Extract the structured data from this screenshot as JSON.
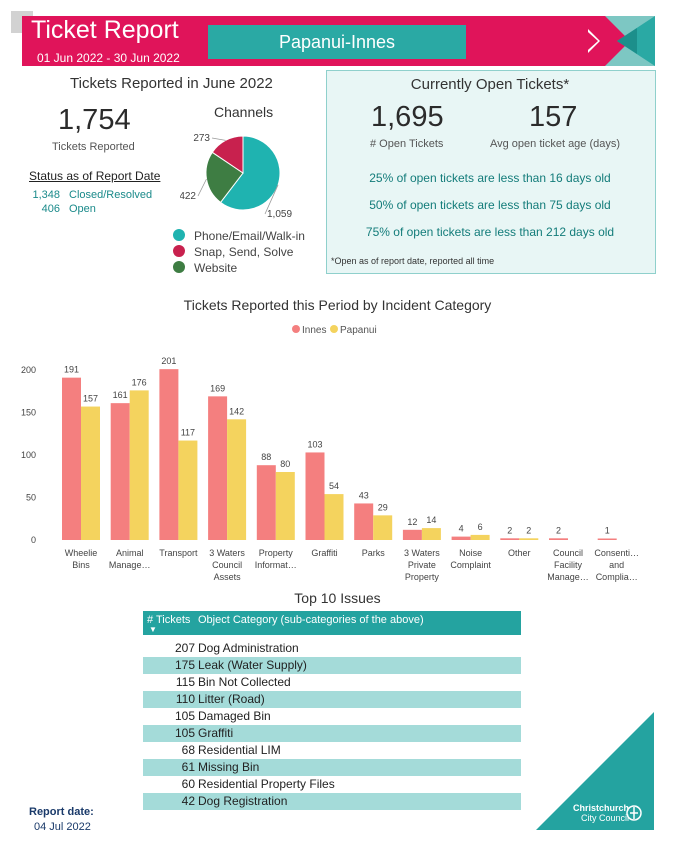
{
  "header": {
    "title": "Ticket Report",
    "date_range": "01 Jun 2022 - 30 Jun 2022",
    "ward": "Papanui-Innes"
  },
  "reported": {
    "section_title": "Tickets Reported in June 2022",
    "total": "1,754",
    "total_label": "Tickets Reported",
    "status_title": "Status as of Report Date",
    "status": [
      {
        "count": "1,348",
        "label": "Closed/Resolved"
      },
      {
        "count": "406",
        "label": "Open"
      }
    ]
  },
  "channels": {
    "title": "Channels",
    "slices": [
      {
        "name": "Phone/Email/Walk-in",
        "value": 1059,
        "label": "1,059",
        "color": "#1fb3b0"
      },
      {
        "name": "Website",
        "value": 422,
        "label": "422",
        "color": "#3e7d43"
      },
      {
        "name": "Snap, Send, Solve",
        "value": 273,
        "label": "273",
        "color": "#c8214e"
      }
    ],
    "legend": [
      {
        "name": "Phone/Email/Walk-in",
        "color": "#1fb3b0"
      },
      {
        "name": "Snap, Send, Solve",
        "color": "#c8214e"
      },
      {
        "name": "Website",
        "color": "#3e7d43"
      }
    ]
  },
  "open_tickets": {
    "title": "Currently Open Tickets*",
    "count": "1,695",
    "count_label": "# Open Tickets",
    "avg_age": "157",
    "avg_age_label": "Avg open ticket age (days)",
    "lines": [
      "25% of open tickets are less than 16 days old",
      "50% of open tickets are less than 75 days old",
      "75% of open tickets are less than 212 days old"
    ],
    "footnote": "*Open as of report date, reported all time"
  },
  "chart_data": {
    "type": "bar",
    "title": "Tickets Reported this Period by Incident Category",
    "categories": [
      [
        "Wheelie",
        "Bins"
      ],
      [
        "Animal",
        "Manage…"
      ],
      [
        "Transport"
      ],
      [
        "3 Waters",
        "Council",
        "Assets"
      ],
      [
        "Property",
        "Informat…"
      ],
      [
        "Graffiti"
      ],
      [
        "Parks"
      ],
      [
        "3 Waters",
        "Private",
        "Property"
      ],
      [
        "Noise",
        "Complaint"
      ],
      [
        "Other"
      ],
      [
        "Council",
        "Facility",
        "Manage…"
      ],
      [
        "Consenti…",
        "and",
        "Complia…"
      ]
    ],
    "series": [
      {
        "name": "Innes",
        "color": "#f47f7f",
        "values": [
          191,
          161,
          201,
          169,
          88,
          103,
          43,
          12,
          4,
          2,
          2,
          1
        ]
      },
      {
        "name": "Papanui",
        "color": "#f4d35e",
        "values": [
          157,
          176,
          117,
          142,
          80,
          54,
          29,
          14,
          6,
          2,
          null,
          null
        ]
      }
    ],
    "ylim": [
      0,
      210
    ],
    "yticks": [
      0,
      50,
      100,
      150,
      200
    ],
    "grid": false,
    "legend_position": "top-center"
  },
  "top10": {
    "title": "Top 10 Issues",
    "col_tickets": "# Tickets",
    "col_category": "Object Category (sub-categories of the above)",
    "rows": [
      {
        "n": "207",
        "cat": "Dog Administration"
      },
      {
        "n": "175",
        "cat": "Leak (Water Supply)"
      },
      {
        "n": "115",
        "cat": "Bin Not Collected"
      },
      {
        "n": "110",
        "cat": "Litter (Road)"
      },
      {
        "n": "105",
        "cat": "Damaged Bin"
      },
      {
        "n": "105",
        "cat": "Graffiti"
      },
      {
        "n": "68",
        "cat": "Residential LIM"
      },
      {
        "n": "61",
        "cat": "Missing Bin"
      },
      {
        "n": "60",
        "cat": "Residential Property Files"
      },
      {
        "n": "42",
        "cat": "Dog Registration"
      }
    ]
  },
  "footer": {
    "report_date_label": "Report date:",
    "report_date": "04 Jul 2022",
    "logo_line1": "Christchurch",
    "logo_line2": "City Council"
  }
}
